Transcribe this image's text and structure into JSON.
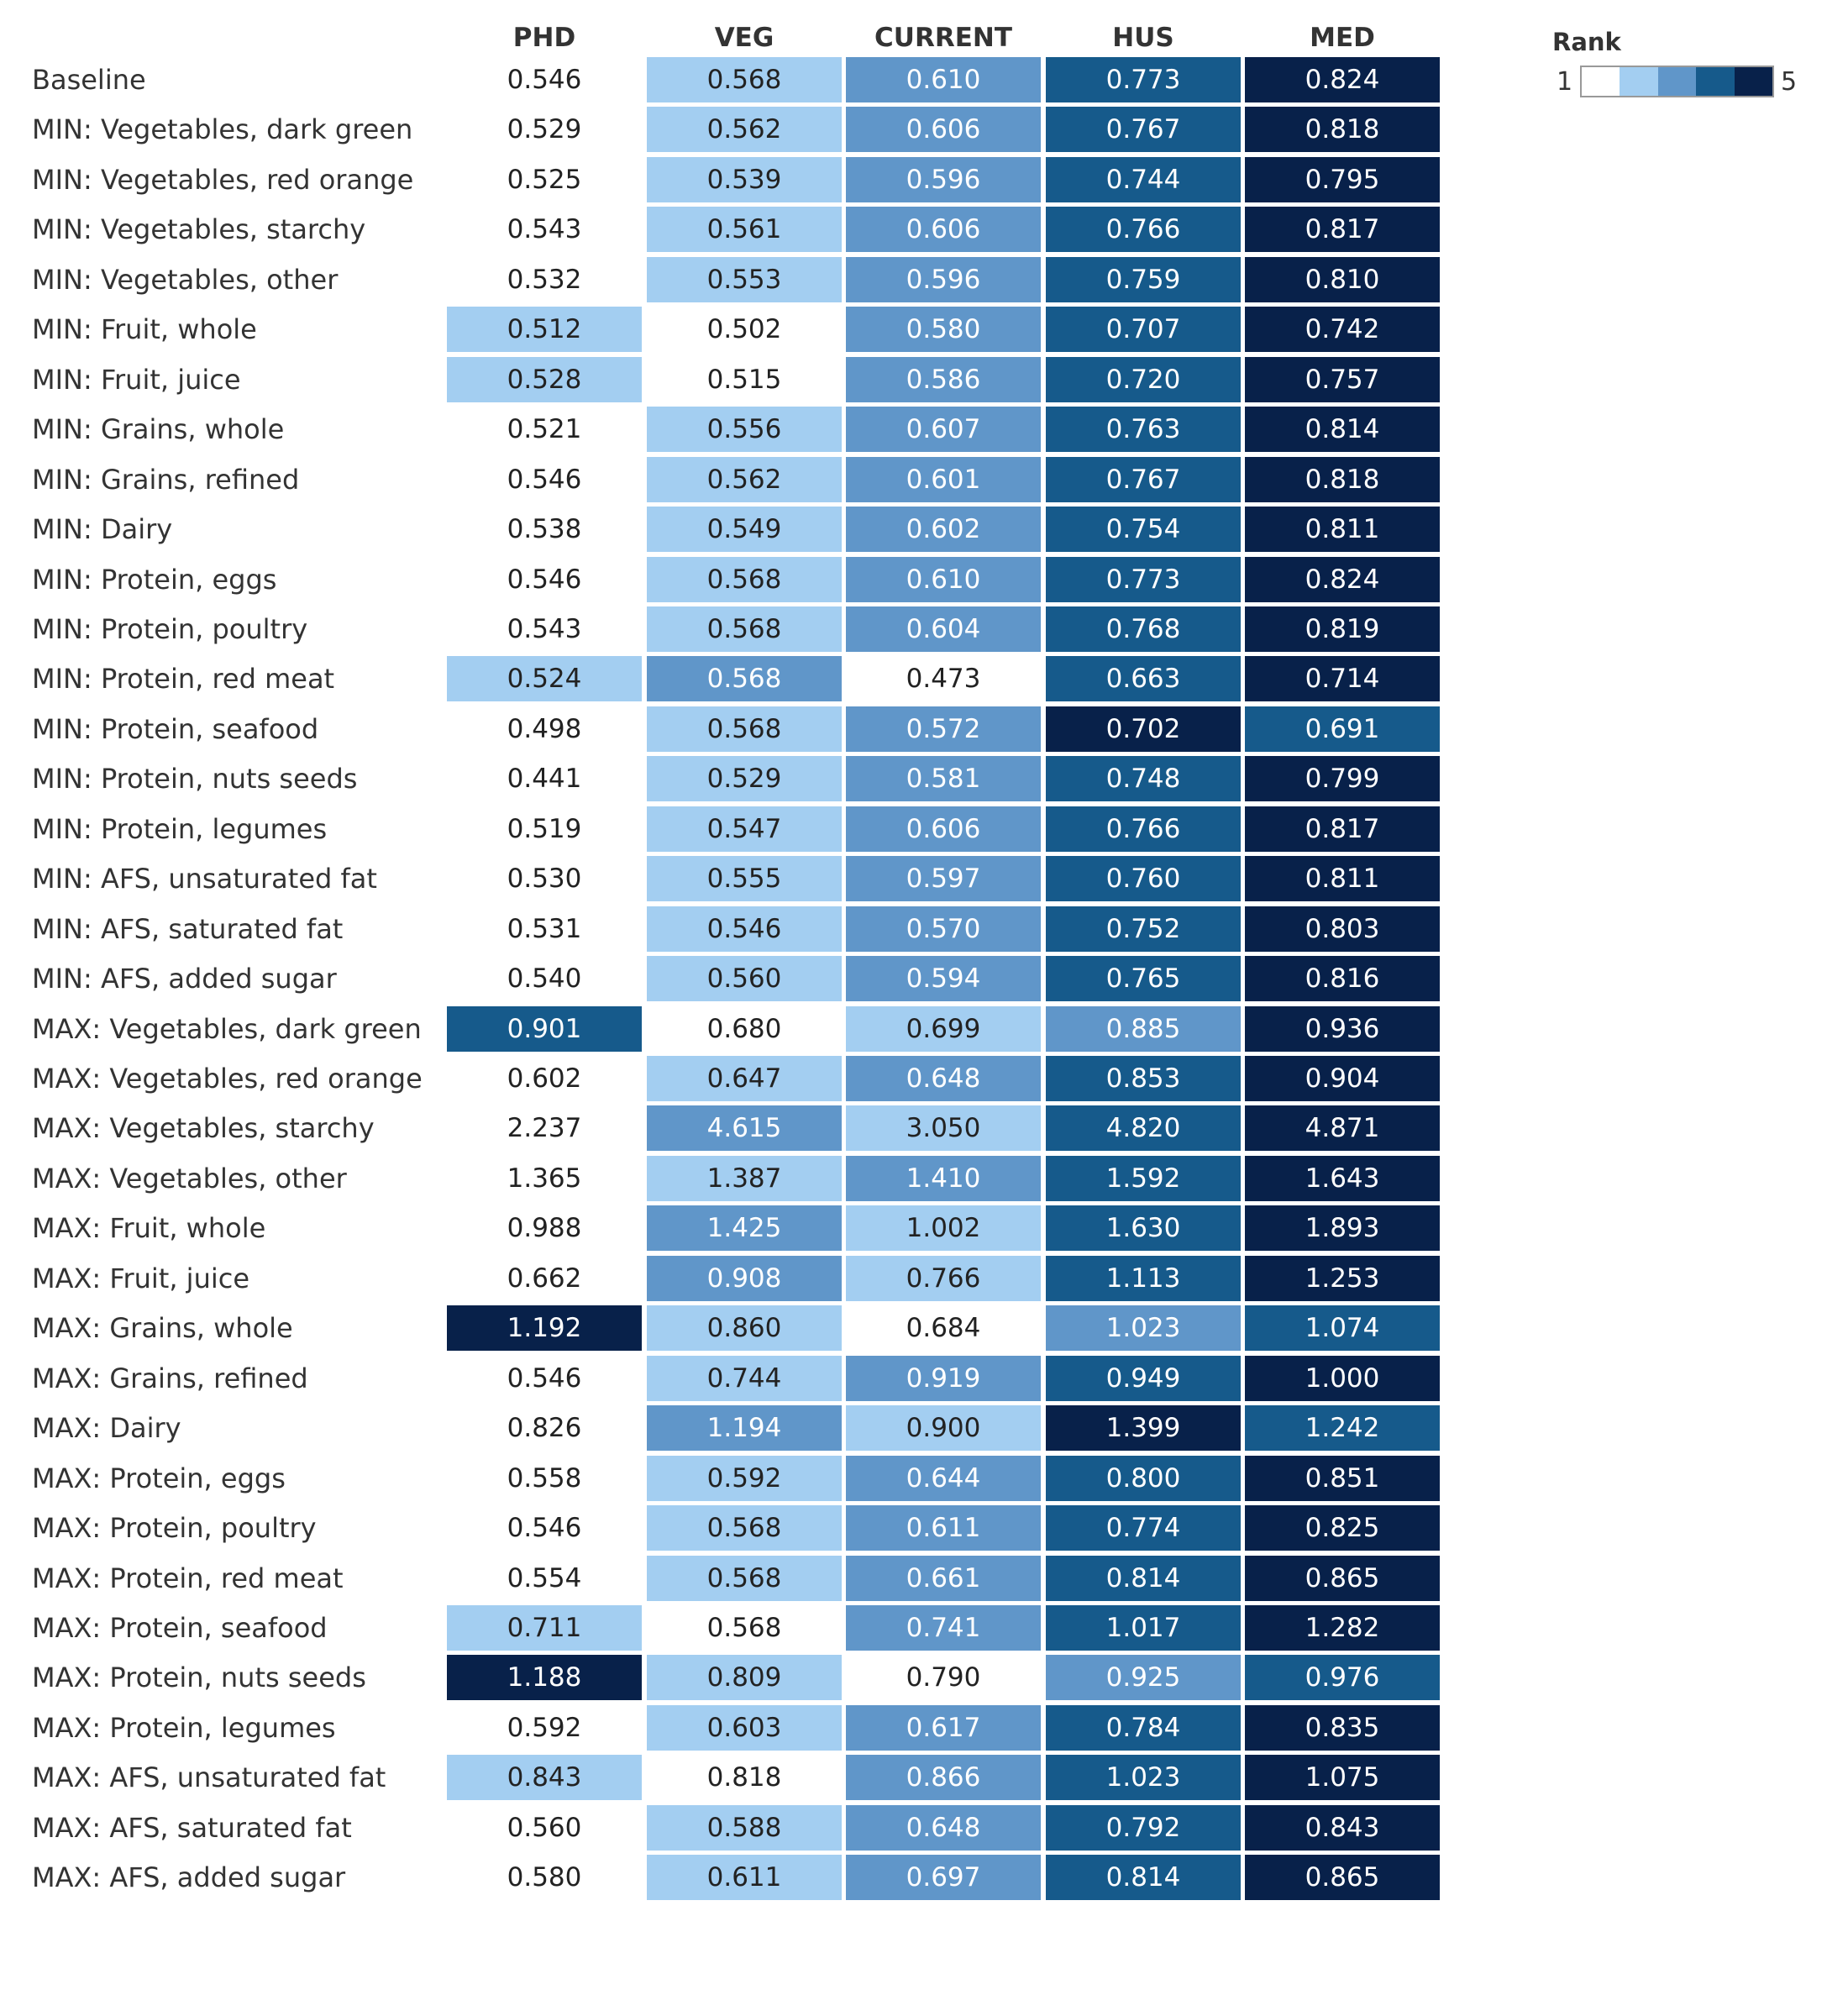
{
  "chart_data": {
    "type": "heatmap",
    "columns": [
      "PHD",
      "VEG",
      "CURRENT",
      "HUS",
      "MED"
    ],
    "legend": {
      "title": "Rank",
      "min_label": "1",
      "max_label": "5",
      "colors": [
        "#ffffff",
        "#a3cef1",
        "#6096c9",
        "#165a8b",
        "#08214a"
      ]
    },
    "rows": [
      {
        "label": "Baseline",
        "values": [
          "0.546",
          "0.568",
          "0.610",
          "0.773",
          "0.824"
        ],
        "ranks": [
          1,
          2,
          3,
          4,
          5
        ]
      },
      {
        "label": "MIN: Vegetables, dark green",
        "values": [
          "0.529",
          "0.562",
          "0.606",
          "0.767",
          "0.818"
        ],
        "ranks": [
          1,
          2,
          3,
          4,
          5
        ]
      },
      {
        "label": "MIN: Vegetables, red orange",
        "values": [
          "0.525",
          "0.539",
          "0.596",
          "0.744",
          "0.795"
        ],
        "ranks": [
          1,
          2,
          3,
          4,
          5
        ]
      },
      {
        "label": "MIN: Vegetables, starchy",
        "values": [
          "0.543",
          "0.561",
          "0.606",
          "0.766",
          "0.817"
        ],
        "ranks": [
          1,
          2,
          3,
          4,
          5
        ]
      },
      {
        "label": "MIN: Vegetables, other",
        "values": [
          "0.532",
          "0.553",
          "0.596",
          "0.759",
          "0.810"
        ],
        "ranks": [
          1,
          2,
          3,
          4,
          5
        ]
      },
      {
        "label": "MIN: Fruit, whole",
        "values": [
          "0.512",
          "0.502",
          "0.580",
          "0.707",
          "0.742"
        ],
        "ranks": [
          2,
          1,
          3,
          4,
          5
        ]
      },
      {
        "label": "MIN: Fruit, juice",
        "values": [
          "0.528",
          "0.515",
          "0.586",
          "0.720",
          "0.757"
        ],
        "ranks": [
          2,
          1,
          3,
          4,
          5
        ]
      },
      {
        "label": "MIN: Grains, whole",
        "values": [
          "0.521",
          "0.556",
          "0.607",
          "0.763",
          "0.814"
        ],
        "ranks": [
          1,
          2,
          3,
          4,
          5
        ]
      },
      {
        "label": "MIN: Grains, refined",
        "values": [
          "0.546",
          "0.562",
          "0.601",
          "0.767",
          "0.818"
        ],
        "ranks": [
          1,
          2,
          3,
          4,
          5
        ]
      },
      {
        "label": "MIN: Dairy",
        "values": [
          "0.538",
          "0.549",
          "0.602",
          "0.754",
          "0.811"
        ],
        "ranks": [
          1,
          2,
          3,
          4,
          5
        ]
      },
      {
        "label": "MIN: Protein, eggs",
        "values": [
          "0.546",
          "0.568",
          "0.610",
          "0.773",
          "0.824"
        ],
        "ranks": [
          1,
          2,
          3,
          4,
          5
        ]
      },
      {
        "label": "MIN: Protein, poultry",
        "values": [
          "0.543",
          "0.568",
          "0.604",
          "0.768",
          "0.819"
        ],
        "ranks": [
          1,
          2,
          3,
          4,
          5
        ]
      },
      {
        "label": "MIN: Protein, red meat",
        "values": [
          "0.524",
          "0.568",
          "0.473",
          "0.663",
          "0.714"
        ],
        "ranks": [
          2,
          3,
          1,
          4,
          5
        ]
      },
      {
        "label": "MIN: Protein, seafood",
        "values": [
          "0.498",
          "0.568",
          "0.572",
          "0.702",
          "0.691"
        ],
        "ranks": [
          1,
          2,
          3,
          5,
          4
        ]
      },
      {
        "label": "MIN: Protein, nuts seeds",
        "values": [
          "0.441",
          "0.529",
          "0.581",
          "0.748",
          "0.799"
        ],
        "ranks": [
          1,
          2,
          3,
          4,
          5
        ]
      },
      {
        "label": "MIN: Protein, legumes",
        "values": [
          "0.519",
          "0.547",
          "0.606",
          "0.766",
          "0.817"
        ],
        "ranks": [
          1,
          2,
          3,
          4,
          5
        ]
      },
      {
        "label": "MIN: AFS, unsaturated fat",
        "values": [
          "0.530",
          "0.555",
          "0.597",
          "0.760",
          "0.811"
        ],
        "ranks": [
          1,
          2,
          3,
          4,
          5
        ]
      },
      {
        "label": "MIN: AFS, saturated fat",
        "values": [
          "0.531",
          "0.546",
          "0.570",
          "0.752",
          "0.803"
        ],
        "ranks": [
          1,
          2,
          3,
          4,
          5
        ]
      },
      {
        "label": "MIN: AFS, added sugar",
        "values": [
          "0.540",
          "0.560",
          "0.594",
          "0.765",
          "0.816"
        ],
        "ranks": [
          1,
          2,
          3,
          4,
          5
        ]
      },
      {
        "label": "MAX: Vegetables, dark green",
        "values": [
          "0.901",
          "0.680",
          "0.699",
          "0.885",
          "0.936"
        ],
        "ranks": [
          4,
          1,
          2,
          3,
          5
        ]
      },
      {
        "label": "MAX: Vegetables, red orange",
        "values": [
          "0.602",
          "0.647",
          "0.648",
          "0.853",
          "0.904"
        ],
        "ranks": [
          1,
          2,
          3,
          4,
          5
        ]
      },
      {
        "label": "MAX: Vegetables, starchy",
        "values": [
          "2.237",
          "4.615",
          "3.050",
          "4.820",
          "4.871"
        ],
        "ranks": [
          1,
          3,
          2,
          4,
          5
        ]
      },
      {
        "label": "MAX: Vegetables, other",
        "values": [
          "1.365",
          "1.387",
          "1.410",
          "1.592",
          "1.643"
        ],
        "ranks": [
          1,
          2,
          3,
          4,
          5
        ]
      },
      {
        "label": "MAX: Fruit, whole",
        "values": [
          "0.988",
          "1.425",
          "1.002",
          "1.630",
          "1.893"
        ],
        "ranks": [
          1,
          3,
          2,
          4,
          5
        ]
      },
      {
        "label": "MAX: Fruit, juice",
        "values": [
          "0.662",
          "0.908",
          "0.766",
          "1.113",
          "1.253"
        ],
        "ranks": [
          1,
          3,
          2,
          4,
          5
        ]
      },
      {
        "label": "MAX: Grains, whole",
        "values": [
          "1.192",
          "0.860",
          "0.684",
          "1.023",
          "1.074"
        ],
        "ranks": [
          5,
          2,
          1,
          3,
          4
        ]
      },
      {
        "label": "MAX: Grains, refined",
        "values": [
          "0.546",
          "0.744",
          "0.919",
          "0.949",
          "1.000"
        ],
        "ranks": [
          1,
          2,
          3,
          4,
          5
        ]
      },
      {
        "label": "MAX: Dairy",
        "values": [
          "0.826",
          "1.194",
          "0.900",
          "1.399",
          "1.242"
        ],
        "ranks": [
          1,
          3,
          2,
          5,
          4
        ]
      },
      {
        "label": "MAX: Protein, eggs",
        "values": [
          "0.558",
          "0.592",
          "0.644",
          "0.800",
          "0.851"
        ],
        "ranks": [
          1,
          2,
          3,
          4,
          5
        ]
      },
      {
        "label": "MAX: Protein, poultry",
        "values": [
          "0.546",
          "0.568",
          "0.611",
          "0.774",
          "0.825"
        ],
        "ranks": [
          1,
          2,
          3,
          4,
          5
        ]
      },
      {
        "label": "MAX: Protein, red meat",
        "values": [
          "0.554",
          "0.568",
          "0.661",
          "0.814",
          "0.865"
        ],
        "ranks": [
          1,
          2,
          3,
          4,
          5
        ]
      },
      {
        "label": "MAX: Protein, seafood",
        "values": [
          "0.711",
          "0.568",
          "0.741",
          "1.017",
          "1.282"
        ],
        "ranks": [
          2,
          1,
          3,
          4,
          5
        ]
      },
      {
        "label": "MAX: Protein, nuts seeds",
        "values": [
          "1.188",
          "0.809",
          "0.790",
          "0.925",
          "0.976"
        ],
        "ranks": [
          5,
          2,
          1,
          3,
          4
        ]
      },
      {
        "label": "MAX: Protein, legumes",
        "values": [
          "0.592",
          "0.603",
          "0.617",
          "0.784",
          "0.835"
        ],
        "ranks": [
          1,
          2,
          3,
          4,
          5
        ]
      },
      {
        "label": "MAX: AFS, unsaturated fat",
        "values": [
          "0.843",
          "0.818",
          "0.866",
          "1.023",
          "1.075"
        ],
        "ranks": [
          2,
          1,
          3,
          4,
          5
        ]
      },
      {
        "label": "MAX: AFS, saturated fat",
        "values": [
          "0.560",
          "0.588",
          "0.648",
          "0.792",
          "0.843"
        ],
        "ranks": [
          1,
          2,
          3,
          4,
          5
        ]
      },
      {
        "label": "MAX: AFS, added sugar",
        "values": [
          "0.580",
          "0.611",
          "0.697",
          "0.814",
          "0.865"
        ],
        "ranks": [
          1,
          2,
          3,
          4,
          5
        ]
      }
    ]
  }
}
